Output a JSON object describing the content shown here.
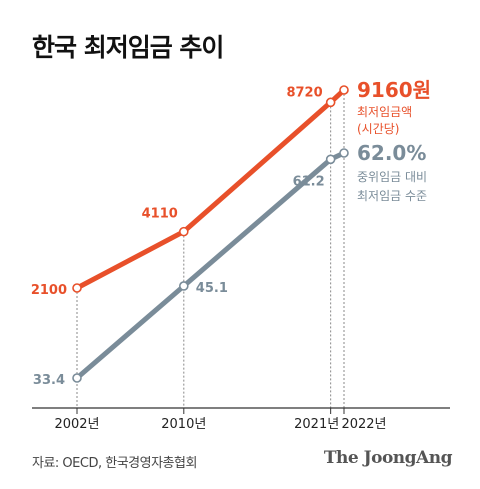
{
  "title": "한국 최저임금 추이",
  "source": "자료: OECD, 한국경영자총협회",
  "brand": "The JoongAng",
  "chart_data": {
    "type": "line",
    "x": [
      "2002년",
      "2010년",
      "2021년",
      "2022년"
    ],
    "x_years": [
      2002,
      2010,
      2021,
      2022
    ],
    "series": [
      {
        "key": "wage",
        "color": "#e8502a",
        "values": [
          2100,
          4110,
          8720,
          9160
        ],
        "point_labels": [
          "2100",
          "4110",
          "8720",
          "9160원"
        ],
        "end_label": [
          "최저임금액",
          "(시간당)"
        ]
      },
      {
        "key": "ratio",
        "color": "#7a8c99",
        "values": [
          33.4,
          45.1,
          61.2,
          62.0
        ],
        "point_labels": [
          "33.4",
          "45.1",
          "61.2",
          "62.0%"
        ],
        "end_label": [
          "중위임금 대비",
          "최저임금 수준"
        ]
      }
    ],
    "grid": false
  }
}
